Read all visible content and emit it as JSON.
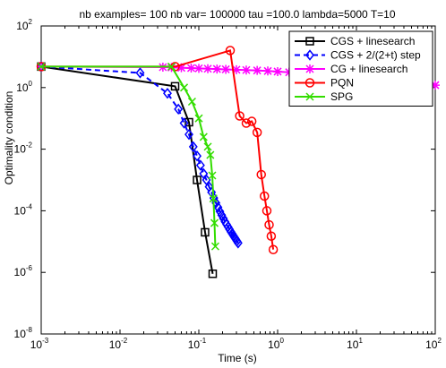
{
  "chart_data": {
    "type": "line",
    "title": "nb examples= 100  nb var= 100000  tau =100.0 lambda=5000 T=10",
    "xlabel": "Time (s)",
    "ylabel": "Optimality condition",
    "xscale": "log",
    "yscale": "log",
    "xlim": [
      0.001,
      100
    ],
    "ylim": [
      1e-08,
      100
    ],
    "grid": false,
    "legend_position": "top-right",
    "x_ticks": [
      {
        "base": "10",
        "exp": "-3",
        "value": 0.001
      },
      {
        "base": "10",
        "exp": "-2",
        "value": 0.01
      },
      {
        "base": "10",
        "exp": "-1",
        "value": 0.1
      },
      {
        "base": "10",
        "exp": "0",
        "value": 1
      },
      {
        "base": "10",
        "exp": "1",
        "value": 10
      },
      {
        "base": "10",
        "exp": "2",
        "value": 100
      }
    ],
    "y_ticks": [
      {
        "base": "10",
        "exp": "-8",
        "value": 1e-08
      },
      {
        "base": "10",
        "exp": "-6",
        "value": 1e-06
      },
      {
        "base": "10",
        "exp": "-4",
        "value": 0.0001
      },
      {
        "base": "10",
        "exp": "-2",
        "value": 0.01
      },
      {
        "base": "10",
        "exp": "0",
        "value": 1
      },
      {
        "base": "10",
        "exp": "2",
        "value": 100
      }
    ],
    "series": [
      {
        "name": "CGS + linesearch",
        "color": "#000000",
        "dash": "solid",
        "marker": "square",
        "x": [
          0.001,
          0.05,
          0.075,
          0.095,
          0.12,
          0.15
        ],
        "y": [
          4.8,
          1.1,
          0.075,
          0.001,
          2e-05,
          9e-07
        ]
      },
      {
        "name": "CGS + 2/(2+t) step",
        "color": "#0000ff",
        "dash": "dashed",
        "marker": "diamond",
        "x": [
          0.001,
          0.018,
          0.04,
          0.055,
          0.065,
          0.075,
          0.085,
          0.095,
          0.105,
          0.115,
          0.125,
          0.135,
          0.145,
          0.155,
          0.165,
          0.175,
          0.185,
          0.195,
          0.205,
          0.215,
          0.225,
          0.235,
          0.245,
          0.255,
          0.265,
          0.275,
          0.285,
          0.295,
          0.305,
          0.315
        ],
        "y": [
          4.8,
          3,
          0.65,
          0.2,
          0.07,
          0.03,
          0.012,
          0.006,
          0.003,
          0.0016,
          0.001,
          0.0006,
          0.0004,
          0.00026,
          0.00018,
          0.00013,
          9.5e-05,
          7.2e-05,
          5.6e-05,
          4.4e-05,
          3.6e-05,
          3e-05,
          2.5e-05,
          2.1e-05,
          1.8e-05,
          1.55e-05,
          1.35e-05,
          1.18e-05,
          1.03e-05,
          9e-06
        ]
      },
      {
        "name": "CG + linesearch",
        "color": "#ff00ff",
        "dash": "solid",
        "marker": "star",
        "x": [
          0.001,
          0.035,
          0.045,
          0.06,
          0.08,
          0.1,
          0.13,
          0.17,
          0.22,
          0.3,
          0.4,
          0.55,
          0.75,
          1,
          1.4,
          2,
          2.8,
          4,
          5.5,
          7.5,
          10,
          14,
          20,
          28,
          40,
          55,
          75,
          100
        ],
        "y": [
          4.8,
          4.6,
          4.5,
          4.4,
          4.3,
          4.2,
          4.1,
          4.0,
          3.9,
          3.8,
          3.7,
          3.6,
          3.45,
          3.3,
          3.15,
          3.0,
          2.85,
          2.7,
          2.55,
          2.4,
          2.25,
          2.1,
          1.95,
          1.8,
          1.65,
          1.5,
          1.35,
          1.2
        ]
      },
      {
        "name": "PQN",
        "color": "#ff0000",
        "dash": "solid",
        "marker": "circle",
        "x": [
          0.001,
          0.05,
          0.25,
          0.33,
          0.4,
          0.47,
          0.55,
          0.62,
          0.68,
          0.73,
          0.78,
          0.83,
          0.88
        ],
        "y": [
          4.8,
          4.8,
          16,
          0.12,
          0.07,
          0.08,
          0.035,
          0.0015,
          0.0003,
          0.0001,
          3.5e-05,
          1.5e-05,
          5.5e-06
        ]
      },
      {
        "name": "SPG",
        "color": "#33dd00",
        "dash": "solid",
        "marker": "x",
        "x": [
          0.001,
          0.045,
          0.065,
          0.082,
          0.1,
          0.115,
          0.13,
          0.14,
          0.148,
          0.153,
          0.158,
          0.162
        ],
        "y": [
          4.8,
          4.8,
          1.0,
          0.35,
          0.1,
          0.025,
          0.012,
          0.0065,
          0.0014,
          0.00025,
          4e-05,
          7e-06
        ]
      }
    ]
  }
}
